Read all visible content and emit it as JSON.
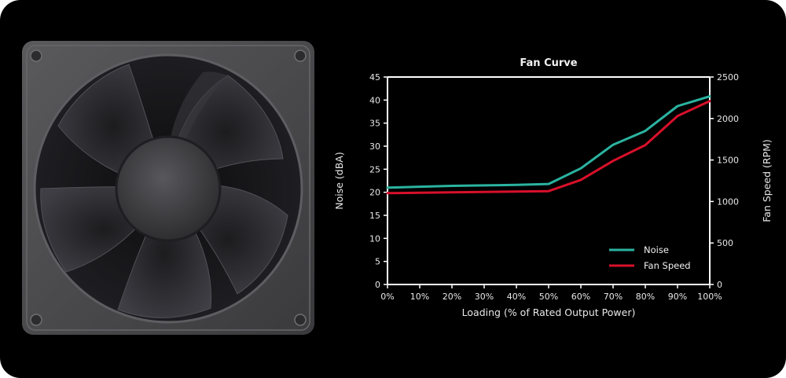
{
  "chart_data": {
    "type": "line",
    "title": "Fan Curve",
    "xlabel": "Loading (% of Rated Output Power)",
    "ylabel_left": "Noise (dBA)",
    "ylabel_right": "Fan Speed (RPM)",
    "categories": [
      "0%",
      "10%",
      "20%",
      "30%",
      "40%",
      "50%",
      "60%",
      "70%",
      "80%",
      "90%",
      "100%"
    ],
    "x": [
      0,
      10,
      20,
      30,
      40,
      50,
      60,
      70,
      80,
      90,
      100
    ],
    "ylim_left": [
      0,
      45
    ],
    "yticks_left": [
      0,
      5,
      10,
      15,
      20,
      25,
      30,
      35,
      40,
      45
    ],
    "ylim_right": [
      0,
      2500
    ],
    "yticks_right": [
      0,
      500,
      1000,
      1500,
      2000,
      2500
    ],
    "grid": false,
    "legend_position": "bottom-right",
    "series": [
      {
        "name": "Noise",
        "axis": "left",
        "color": "#2bb3a0",
        "values": [
          21.0,
          21.2,
          21.4,
          21.5,
          21.6,
          21.8,
          25.2,
          30.3,
          33.3,
          38.7,
          40.8
        ]
      },
      {
        "name": "Fan Speed",
        "axis": "right",
        "color": "#d8102a",
        "values": [
          1100,
          1105,
          1110,
          1115,
          1120,
          1125,
          1260,
          1490,
          1680,
          2030,
          2210
        ]
      }
    ]
  },
  "colors": {
    "background": "#000000",
    "axis": "#ffffff",
    "fan_frame": "#4a4a4c",
    "fan_blades": "#2f2f33"
  },
  "fan_image": {
    "icon": "cooling-fan-icon"
  }
}
